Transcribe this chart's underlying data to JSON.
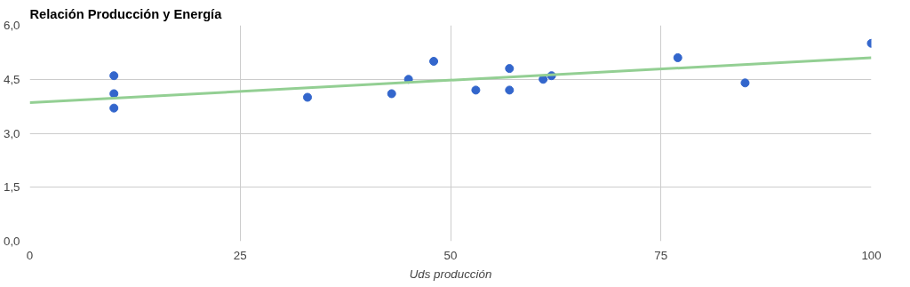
{
  "chart_data": {
    "type": "scatter",
    "title": "Relación Producción y Energía",
    "xlabel": "Uds producción",
    "xlim": [
      0,
      100
    ],
    "xticks": [
      0,
      25,
      50,
      75,
      100
    ],
    "ylim": [
      0,
      6
    ],
    "yticks": [
      {
        "value": 0,
        "label": "0,0"
      },
      {
        "value": 1.5,
        "label": "1,5"
      },
      {
        "value": 3,
        "label": "3,0"
      },
      {
        "value": 4.5,
        "label": "4,5"
      },
      {
        "value": 6,
        "label": "6,0"
      }
    ],
    "grid": true,
    "series": [
      {
        "marker": "circle",
        "color": "#3366cc",
        "x": [
          10,
          10,
          10,
          33,
          43,
          45,
          48,
          53,
          57,
          57,
          61,
          62,
          77,
          85,
          100
        ],
        "values": [
          4.6,
          4.1,
          3.7,
          4.0,
          4.1,
          4.5,
          5.0,
          4.2,
          4.8,
          4.2,
          4.5,
          4.6,
          5.1,
          4.4,
          5.5
        ]
      },
      {
        "type": "line",
        "color": "#93cf93",
        "x": [
          0,
          100
        ],
        "values": [
          3.85,
          5.1
        ]
      }
    ]
  }
}
